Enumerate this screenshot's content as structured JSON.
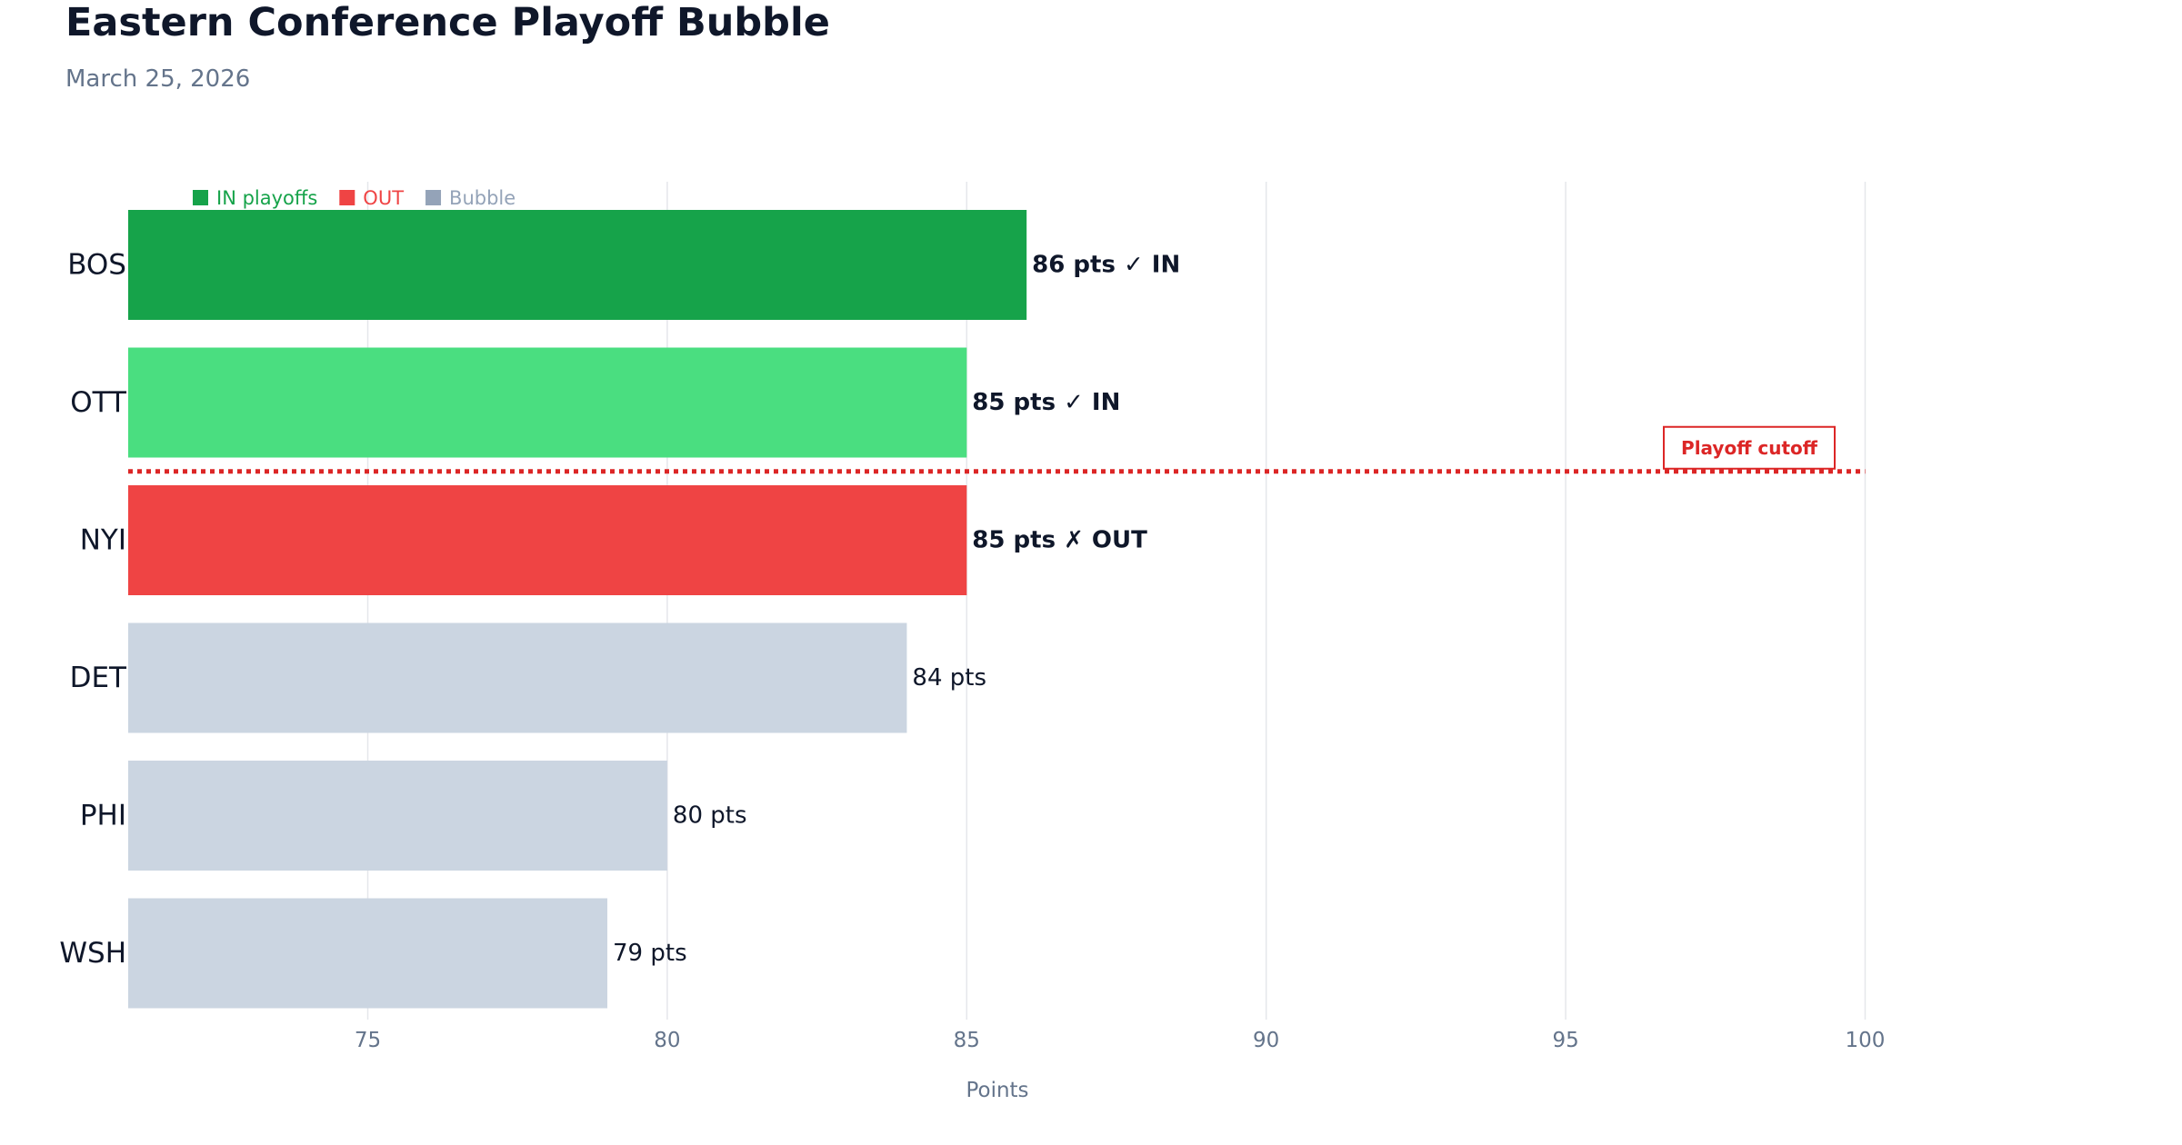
{
  "chart_data": {
    "type": "bar",
    "orientation": "horizontal",
    "title": "Eastern Conference Playoff Bubble",
    "subtitle": "March 25, 2026",
    "xlabel": "Points",
    "ylabel": "",
    "xlim": [
      71,
      104
    ],
    "xticks": [
      "75",
      "80",
      "85",
      "90",
      "95",
      "100"
    ],
    "grid": "vertical",
    "categories": [
      "BOS",
      "OTT",
      "NYI",
      "DET",
      "PHI",
      "WSH"
    ],
    "values": [
      86,
      85,
      85,
      84,
      80,
      79
    ],
    "statuses": [
      "IN",
      "IN",
      "OUT",
      "Bubble",
      "Bubble",
      "Bubble"
    ],
    "data_labels": [
      "86 pts ✓ IN",
      "85 pts ✓ IN",
      "85 pts ✗ OUT",
      "84 pts",
      "80 pts",
      "79 pts"
    ],
    "bar_colors": [
      "#16a34a",
      "#4ade80",
      "#ef4444",
      "#cbd5e1",
      "#cbd5e1",
      "#cbd5e1"
    ],
    "legend": {
      "placement": "top-left",
      "items": [
        {
          "label": "IN playoffs",
          "color": "#16a34a"
        },
        {
          "label": "OUT",
          "color": "#ef4444"
        },
        {
          "label": "Bubble",
          "color": "#94a3b8"
        }
      ]
    },
    "annotation": {
      "label": "Playoff cutoff",
      "after_category": "OTT",
      "color": "#dc2626",
      "style": "dotted"
    }
  }
}
